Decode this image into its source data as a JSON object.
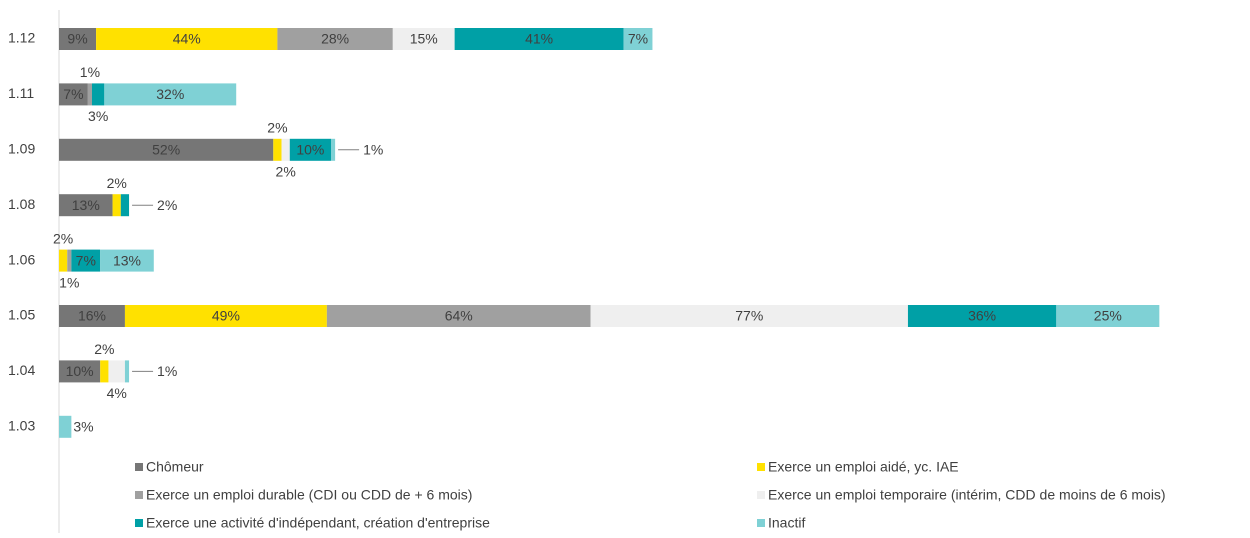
{
  "chart_data": {
    "type": "stacked-barh",
    "categories": [
      "1.12",
      "1.11",
      "1.09",
      "1.08",
      "1.06",
      "1.05",
      "1.04",
      "1.03"
    ],
    "xlim": [
      0,
      289
    ],
    "legend": "bottom",
    "series": [
      {
        "name": "Chômeur",
        "color": "#767676",
        "values": [
          9,
          7,
          52,
          13,
          null,
          16,
          10,
          null
        ],
        "value_labels": [
          "9%",
          "7%",
          "52%",
          "13%",
          null,
          "16%",
          "10%",
          null
        ]
      },
      {
        "name": "Exerce un emploi aidé, yc. IAE",
        "color": "#ffe100",
        "values": [
          44,
          null,
          2,
          2,
          2,
          49,
          2,
          null
        ],
        "value_labels": [
          "44%",
          null,
          "2%",
          "2%",
          "2%",
          "49%",
          "2%",
          null
        ]
      },
      {
        "name": "Exerce un emploi durable (CDI ou CDD de + 6 mois)",
        "color": "#a0a0a0",
        "values": [
          28,
          1,
          null,
          null,
          1,
          64,
          null,
          null
        ],
        "value_labels": [
          "28%",
          "1%",
          null,
          null,
          "1%",
          "64%",
          null,
          null
        ]
      },
      {
        "name": "Exerce un emploi temporaire (intérim, CDD de moins de 6 mois)",
        "color": "#efefef",
        "values": [
          15,
          null,
          2,
          null,
          null,
          77,
          4,
          null
        ],
        "value_labels": [
          "15%",
          null,
          "2%",
          null,
          null,
          "77%",
          "4%",
          null
        ]
      },
      {
        "name": "Exerce une activité d'indépendant, création d'entreprise",
        "color": "#00a0a6",
        "values": [
          41,
          3,
          10,
          2,
          7,
          36,
          null,
          null
        ],
        "value_labels": [
          "41%",
          "3%",
          "10%",
          "2%",
          "7%",
          "36%",
          null,
          null
        ]
      },
      {
        "name": "Inactif",
        "color": "#7fd1d5",
        "values": [
          7,
          32,
          1,
          null,
          13,
          25,
          1,
          3
        ],
        "value_labels": [
          "7%",
          "32%",
          "1%",
          null,
          "13%",
          "25%",
          "1%",
          "3%"
        ]
      }
    ]
  }
}
